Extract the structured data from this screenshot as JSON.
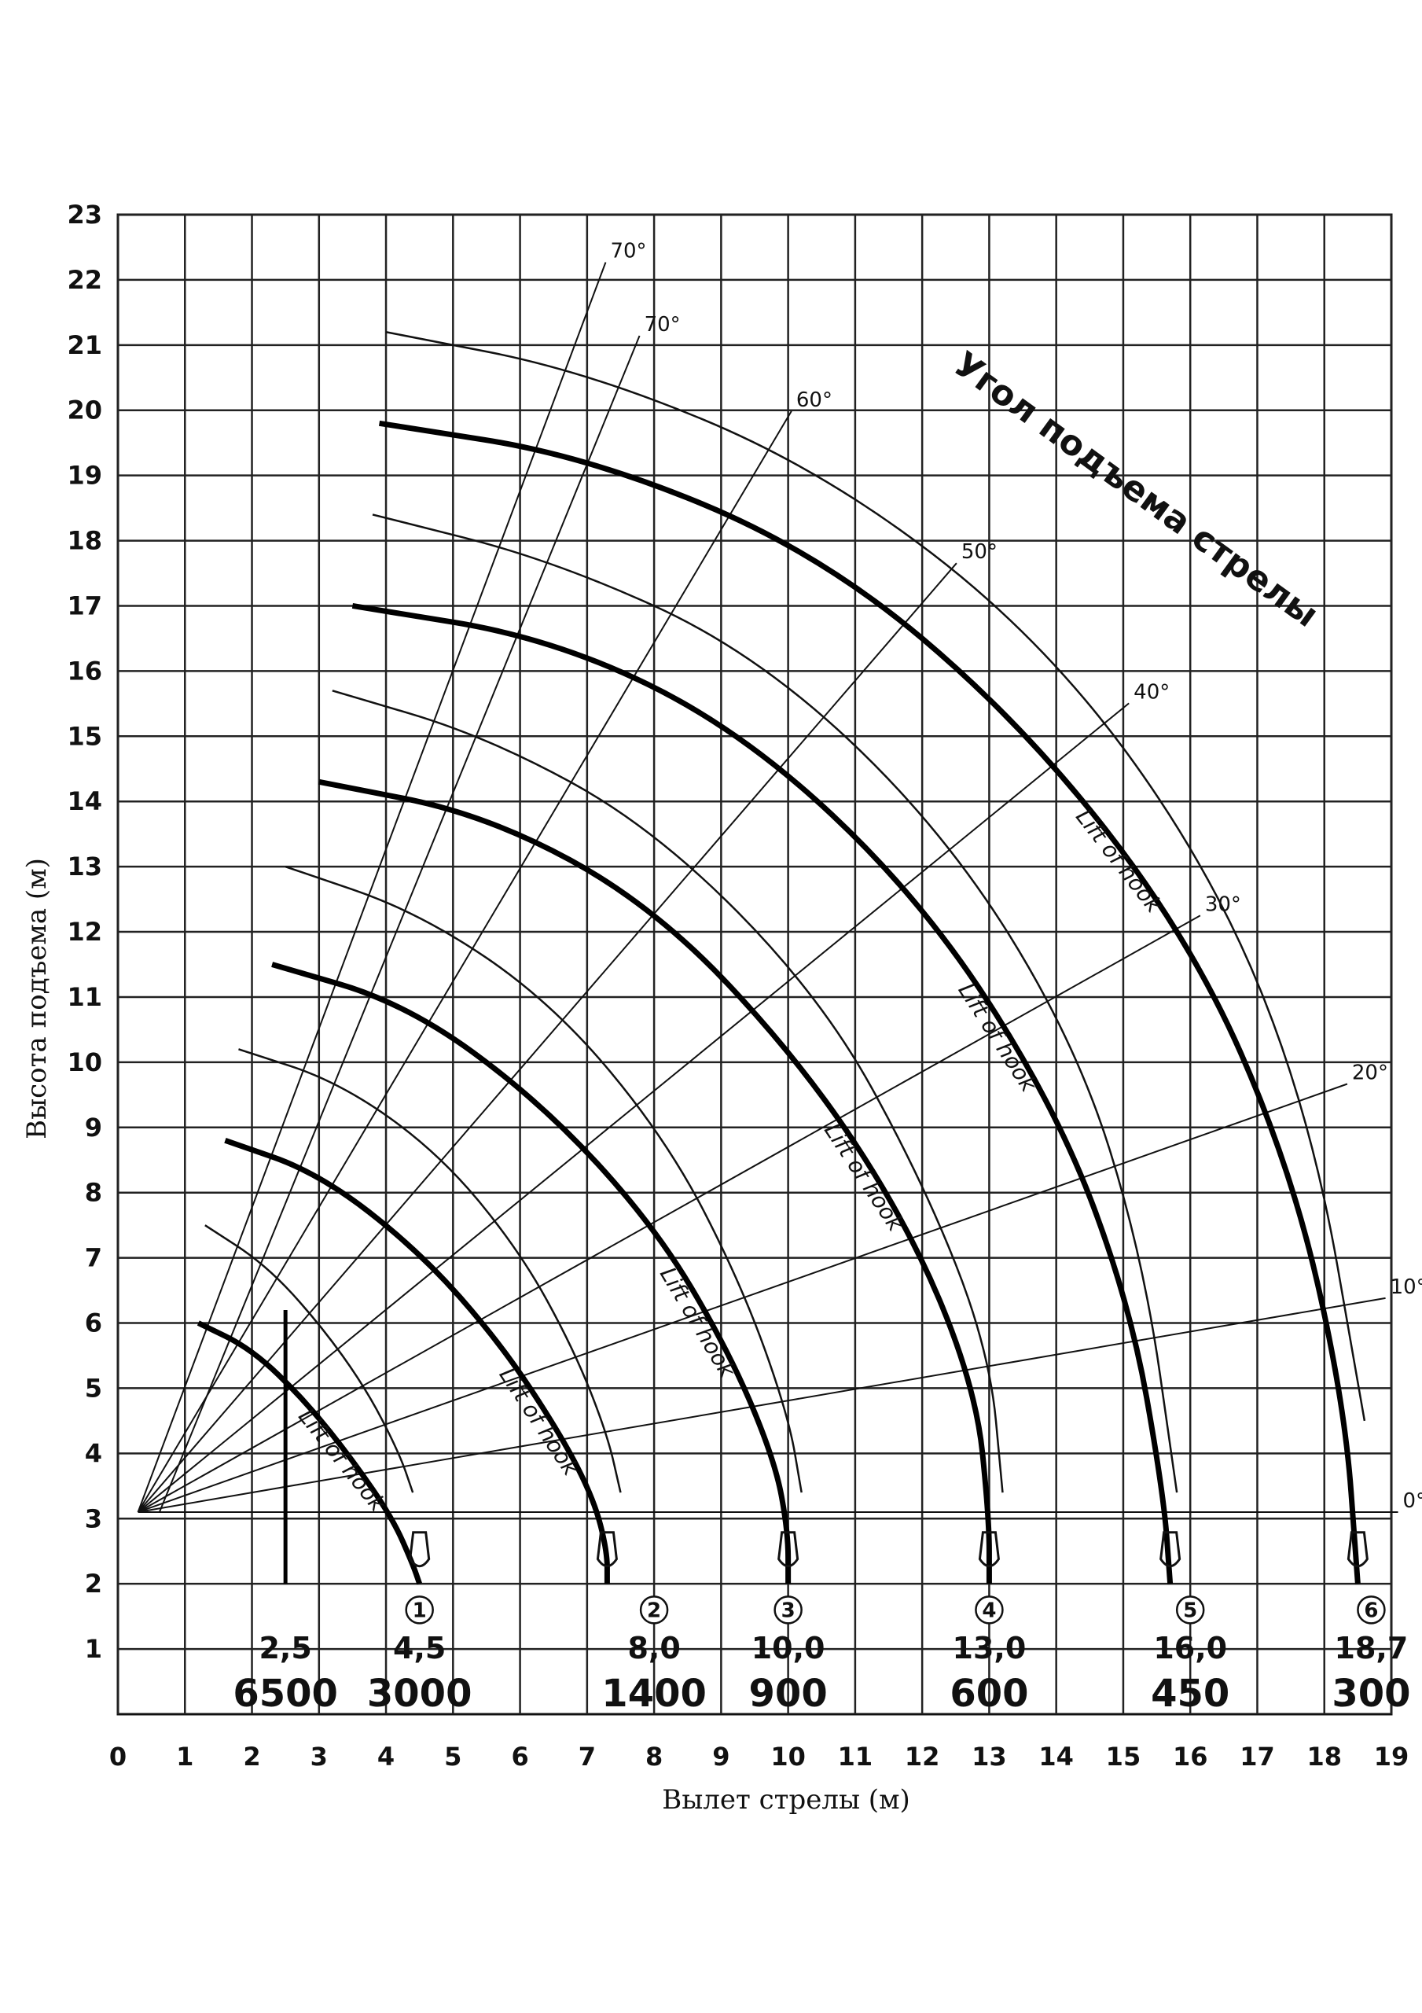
{
  "chart_data": {
    "type": "line",
    "xlabel": "Вылет стрелы (м)",
    "ylabel": "Высота подъема (м)",
    "xlim": [
      0,
      19
    ],
    "ylim": [
      0,
      23
    ],
    "x_ticks": [
      0,
      1,
      2,
      3,
      4,
      5,
      6,
      7,
      8,
      9,
      10,
      11,
      12,
      13,
      14,
      15,
      16,
      17,
      18,
      19
    ],
    "y_ticks": [
      1,
      2,
      3,
      4,
      5,
      6,
      7,
      8,
      9,
      10,
      11,
      12,
      13,
      14,
      15,
      16,
      17,
      18,
      19,
      20,
      21,
      22,
      23
    ],
    "y_tick_labels": [
      "1",
      "2",
      "3",
      "4",
      "5",
      "6",
      "7",
      "8",
      "9",
      "10",
      "11",
      "12",
      "13",
      "14",
      "15",
      "16",
      "17",
      "18",
      "19",
      "20",
      "21",
      "22",
      "23"
    ],
    "grid": true,
    "pivot": {
      "x": 0.3,
      "y": 3.1
    },
    "angle_annotation": "Угол подъема стрелы",
    "hook_label": "Lift of hook",
    "boom_angles": [
      {
        "label": "70°",
        "deg": 70,
        "length": 20.4
      },
      {
        "label": "70°",
        "deg": 70,
        "length": 20.0
      },
      {
        "label": "60°",
        "deg": 60,
        "length": 19.5
      },
      {
        "label": "50°",
        "deg": 50,
        "length": 19.0
      },
      {
        "label": "40°",
        "deg": 40,
        "length": 19.3
      },
      {
        "label": "30°",
        "deg": 30,
        "length": 18.3
      },
      {
        "label": "20°",
        "deg": 20,
        "length": 19.2
      },
      {
        "label": "10°",
        "deg": 10,
        "length": 18.9
      },
      {
        "label": "0°",
        "deg": 0,
        "length": 18.8
      }
    ],
    "capacity_markers": [
      {
        "reach": "2,5",
        "load": "6500",
        "x": 2.5
      },
      {
        "reach": "4,5",
        "load": "3000",
        "x": 4.5,
        "num": "1"
      },
      {
        "reach": "8,0",
        "load": "1400",
        "x": 8.0,
        "num": "2"
      },
      {
        "reach": "10,0",
        "load": "900",
        "x": 10.0,
        "num": "3"
      },
      {
        "reach": "13,0",
        "load": "600",
        "x": 13.0,
        "num": "4"
      },
      {
        "reach": "16,0",
        "load": "450",
        "x": 16.0,
        "num": "5"
      },
      {
        "reach": "18,7",
        "load": "300",
        "x": 18.7,
        "num": "6"
      }
    ],
    "series": [
      {
        "num": "1",
        "thin_x": [
          1.3,
          2.2,
          3.0,
          3.7,
          4.2,
          4.4
        ],
        "thin_y": [
          7.5,
          6.9,
          6.0,
          5.0,
          4.0,
          3.4
        ],
        "thick_x": [
          1.2,
          2.0,
          2.8,
          3.5,
          4.1,
          4.4,
          4.5
        ],
        "thick_y": [
          6.0,
          5.6,
          4.8,
          3.9,
          3.0,
          2.3,
          2.0
        ]
      },
      {
        "num": "2",
        "thin_x": [
          1.8,
          3.3,
          4.8,
          6.0,
          6.8,
          7.3,
          7.5
        ],
        "thin_y": [
          10.2,
          9.7,
          8.6,
          7.1,
          5.6,
          4.3,
          3.4
        ],
        "thick_x": [
          1.6,
          3.0,
          4.5,
          5.7,
          6.6,
          7.1,
          7.3,
          7.3
        ],
        "thick_y": [
          8.8,
          8.3,
          7.1,
          5.7,
          4.3,
          3.3,
          2.5,
          2.0
        ]
      },
      {
        "num": "3",
        "thin_x": [
          2.5,
          4.5,
          6.5,
          8.2,
          9.3,
          10.0,
          10.2
        ],
        "thin_y": [
          13.0,
          12.3,
          10.9,
          8.8,
          6.6,
          4.6,
          3.4
        ],
        "thick_x": [
          2.3,
          4.3,
          6.3,
          8.0,
          9.1,
          9.8,
          10.0,
          10.0
        ],
        "thick_y": [
          11.5,
          10.9,
          9.4,
          7.5,
          5.6,
          3.9,
          2.8,
          2.0
        ]
      },
      {
        "num": "4",
        "thin_x": [
          3.2,
          5.5,
          8.0,
          10.5,
          12.0,
          13.0,
          13.2
        ],
        "thin_y": [
          15.7,
          15.0,
          13.6,
          11.0,
          8.2,
          5.6,
          3.4
        ],
        "thick_x": [
          3.0,
          5.5,
          8.0,
          10.2,
          11.8,
          12.8,
          13.0,
          13.0
        ],
        "thick_y": [
          14.3,
          13.8,
          12.4,
          10.0,
          7.5,
          5.0,
          3.0,
          2.0
        ]
      },
      {
        "num": "5",
        "thin_x": [
          3.8,
          6.5,
          9.5,
          12.3,
          14.3,
          15.3,
          15.8
        ],
        "thin_y": [
          18.4,
          17.7,
          16.3,
          13.6,
          10.3,
          7.0,
          3.4
        ],
        "thick_x": [
          3.5,
          6.5,
          9.3,
          12.0,
          14.0,
          15.1,
          15.6,
          15.7
        ],
        "thick_y": [
          17.0,
          16.5,
          15.1,
          12.5,
          9.3,
          6.3,
          3.4,
          2.0
        ]
      },
      {
        "num": "6",
        "thin_x": [
          4.0,
          7.0,
          10.5,
          13.8,
          16.3,
          17.8,
          18.6
        ],
        "thin_y": [
          21.2,
          20.6,
          19.1,
          16.5,
          13.0,
          9.2,
          4.5
        ],
        "thick_x": [
          3.9,
          7.0,
          10.5,
          13.5,
          16.0,
          17.5,
          18.3,
          18.5
        ],
        "thick_y": [
          19.8,
          19.3,
          17.8,
          15.2,
          11.9,
          8.4,
          4.8,
          2.0
        ]
      }
    ]
  }
}
